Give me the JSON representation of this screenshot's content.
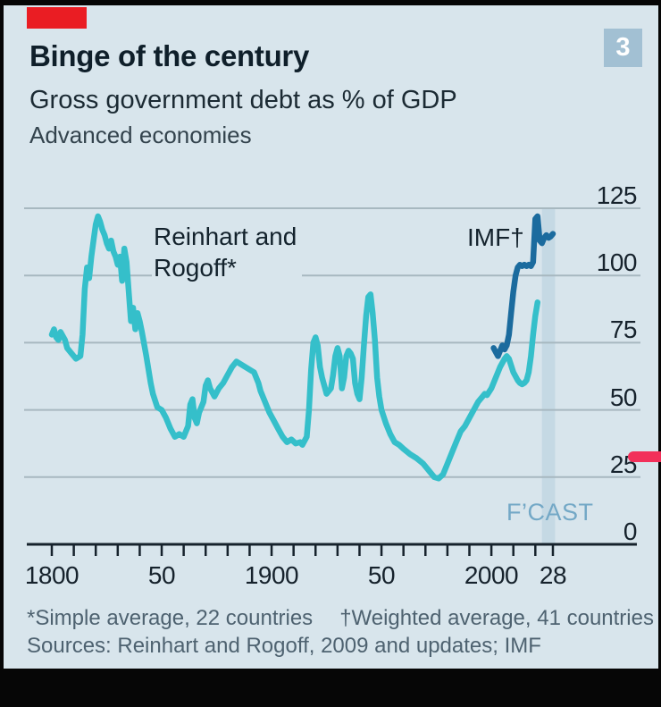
{
  "window": {
    "badge": "3"
  },
  "header": {
    "title": "Binge of the century",
    "subtitle": "Gross government debt as % of GDP",
    "tagline": "Advanced economies"
  },
  "annotations": {
    "series1_line1": "Reinhart and",
    "series1_line2": "Rogoff*",
    "series2": "IMF†",
    "fcast": "F’CAST"
  },
  "footnotes": {
    "line1_a": "*Simple average, 22 countries",
    "line1_b": "†Weighted average, 41 countries",
    "line2": "Sources: Reinhart and Rogoff, 2009 and updates; IMF"
  },
  "colors": {
    "panel_bg": "#d8e5ec",
    "grid": "#a7b8c0",
    "axis": "#16222c",
    "teal_series": "#35bfca",
    "blue_series": "#1b6b9e",
    "forecast_band": "#c5d9e4",
    "fcast_text": "#73a8c6",
    "red_tab": "#ea1d23",
    "red_marker": "#f2305a",
    "badge_bg": "#a2c0d3"
  },
  "chart_data": {
    "type": "line",
    "title": "Binge of the century",
    "subtitle": "Gross government debt as % of GDP",
    "scope": "Advanced economies",
    "ylabel": "% of GDP",
    "y_axis": {
      "range": [
        0,
        125
      ],
      "ticks": [
        0,
        25,
        50,
        75,
        100,
        125
      ],
      "grid": true,
      "labels_side": "right"
    },
    "x_axis": {
      "range": [
        1800,
        2029
      ],
      "tick_years": [
        1800,
        1810,
        1820,
        1830,
        1840,
        1850,
        1860,
        1870,
        1880,
        1890,
        1900,
        1910,
        1920,
        1930,
        1940,
        1950,
        1960,
        1970,
        1980,
        1990,
        2000,
        2010,
        2020,
        2028
      ],
      "labeled_ticks": [
        {
          "year": 1800,
          "label": "1800"
        },
        {
          "year": 1850,
          "label": "50"
        },
        {
          "year": 1900,
          "label": "1900"
        },
        {
          "year": 1950,
          "label": "50"
        },
        {
          "year": 2000,
          "label": "2000"
        },
        {
          "year": 2028,
          "label": "28"
        }
      ]
    },
    "forecast_band": {
      "start_year": 2023,
      "end_year": 2029,
      "label": "F’CAST"
    },
    "series": [
      {
        "name": "Reinhart and Rogoff*",
        "note": "Simple average, 22 countries",
        "color": "#35bfca",
        "points": [
          [
            1800,
            78
          ],
          [
            1801,
            80
          ],
          [
            1802,
            77
          ],
          [
            1803,
            76
          ],
          [
            1804,
            79
          ],
          [
            1806,
            76
          ],
          [
            1807,
            73
          ],
          [
            1809,
            71
          ],
          [
            1811,
            69
          ],
          [
            1813,
            70
          ],
          [
            1814,
            78
          ],
          [
            1815,
            95
          ],
          [
            1816,
            103
          ],
          [
            1817,
            99
          ],
          [
            1818,
            107
          ],
          [
            1819,
            113
          ],
          [
            1820,
            119
          ],
          [
            1821,
            122
          ],
          [
            1822,
            120
          ],
          [
            1823,
            117
          ],
          [
            1824,
            115
          ],
          [
            1825,
            112
          ],
          [
            1826,
            110
          ],
          [
            1827,
            113
          ],
          [
            1828,
            109
          ],
          [
            1829,
            107
          ],
          [
            1830,
            104
          ],
          [
            1831,
            107
          ],
          [
            1832,
            98
          ],
          [
            1833,
            110
          ],
          [
            1834,
            105
          ],
          [
            1835,
            94
          ],
          [
            1836,
            83
          ],
          [
            1837,
            88
          ],
          [
            1838,
            80
          ],
          [
            1839,
            86
          ],
          [
            1840,
            83
          ],
          [
            1841,
            79
          ],
          [
            1843,
            70
          ],
          [
            1845,
            60
          ],
          [
            1846,
            56
          ],
          [
            1848,
            51
          ],
          [
            1850,
            50
          ],
          [
            1852,
            47
          ],
          [
            1854,
            43
          ],
          [
            1856,
            40
          ],
          [
            1858,
            41
          ],
          [
            1860,
            40
          ],
          [
            1862,
            44
          ],
          [
            1863,
            52
          ],
          [
            1864,
            54
          ],
          [
            1865,
            47
          ],
          [
            1866,
            45
          ],
          [
            1867,
            49
          ],
          [
            1869,
            53
          ],
          [
            1870,
            59
          ],
          [
            1871,
            61
          ],
          [
            1872,
            58
          ],
          [
            1874,
            55
          ],
          [
            1876,
            58
          ],
          [
            1878,
            60
          ],
          [
            1880,
            63
          ],
          [
            1882,
            66
          ],
          [
            1884,
            68
          ],
          [
            1886,
            67
          ],
          [
            1888,
            66
          ],
          [
            1890,
            65
          ],
          [
            1892,
            64
          ],
          [
            1894,
            60
          ],
          [
            1895,
            57
          ],
          [
            1897,
            53
          ],
          [
            1899,
            49
          ],
          [
            1901,
            46
          ],
          [
            1903,
            43
          ],
          [
            1905,
            40
          ],
          [
            1907,
            38
          ],
          [
            1909,
            39
          ],
          [
            1911,
            37.5
          ],
          [
            1913,
            38
          ],
          [
            1914,
            37
          ],
          [
            1916,
            40
          ],
          [
            1917,
            50
          ],
          [
            1918,
            65
          ],
          [
            1919,
            75
          ],
          [
            1920,
            77
          ],
          [
            1921,
            74
          ],
          [
            1922,
            66
          ],
          [
            1923,
            62
          ],
          [
            1925,
            56
          ],
          [
            1927,
            58
          ],
          [
            1928,
            63
          ],
          [
            1929,
            70
          ],
          [
            1930,
            73
          ],
          [
            1931,
            70
          ],
          [
            1932,
            58
          ],
          [
            1933,
            62
          ],
          [
            1934,
            70
          ],
          [
            1935,
            72
          ],
          [
            1936,
            71
          ],
          [
            1937,
            69
          ],
          [
            1938,
            60
          ],
          [
            1939,
            56
          ],
          [
            1940,
            54
          ],
          [
            1941,
            62
          ],
          [
            1942,
            74
          ],
          [
            1943,
            85
          ],
          [
            1944,
            92
          ],
          [
            1945,
            93
          ],
          [
            1946,
            86
          ],
          [
            1947,
            76
          ],
          [
            1948,
            62
          ],
          [
            1949,
            55
          ],
          [
            1950,
            50
          ],
          [
            1952,
            45
          ],
          [
            1954,
            41
          ],
          [
            1956,
            38
          ],
          [
            1958,
            37
          ],
          [
            1960,
            35.5
          ],
          [
            1963,
            33.5
          ],
          [
            1966,
            32
          ],
          [
            1969,
            30
          ],
          [
            1972,
            27
          ],
          [
            1974,
            25
          ],
          [
            1976,
            24.5
          ],
          [
            1978,
            26
          ],
          [
            1980,
            30
          ],
          [
            1982,
            34
          ],
          [
            1984,
            38
          ],
          [
            1986,
            42
          ],
          [
            1988,
            44
          ],
          [
            1990,
            47
          ],
          [
            1992,
            50
          ],
          [
            1994,
            53
          ],
          [
            1996,
            55
          ],
          [
            1997,
            56
          ],
          [
            1998,
            55.5
          ],
          [
            2000,
            58
          ],
          [
            2002,
            62
          ],
          [
            2004,
            66
          ],
          [
            2006,
            69
          ],
          [
            2007,
            70
          ],
          [
            2008,
            69
          ],
          [
            2010,
            64
          ],
          [
            2012,
            61
          ],
          [
            2013,
            60
          ],
          [
            2014,
            59.5
          ],
          [
            2015,
            60
          ],
          [
            2016,
            61
          ],
          [
            2017,
            64
          ],
          [
            2018,
            70
          ],
          [
            2019,
            78
          ],
          [
            2020,
            85
          ],
          [
            2021,
            90
          ]
        ]
      },
      {
        "name": "IMF†",
        "note": "Weighted average, 41 countries",
        "color": "#1b6b9e",
        "points": [
          [
            2001,
            73
          ],
          [
            2002,
            71.5
          ],
          [
            2003,
            70
          ],
          [
            2004,
            72
          ],
          [
            2005,
            74
          ],
          [
            2006,
            72.5
          ],
          [
            2007,
            74
          ],
          [
            2008,
            78
          ],
          [
            2009,
            86
          ],
          [
            2010,
            94
          ],
          [
            2011,
            100
          ],
          [
            2012,
            103
          ],
          [
            2013,
            104
          ],
          [
            2014,
            103.5
          ],
          [
            2015,
            104
          ],
          [
            2016,
            103.5
          ],
          [
            2017,
            104
          ],
          [
            2018,
            103.5
          ],
          [
            2019,
            105
          ],
          [
            2020,
            121
          ],
          [
            2021,
            122
          ],
          [
            2022,
            113
          ],
          [
            2023,
            112
          ],
          [
            2024,
            114
          ],
          [
            2025,
            115
          ],
          [
            2026,
            114
          ],
          [
            2027,
            114.5
          ],
          [
            2028,
            115.5
          ]
        ]
      }
    ]
  }
}
